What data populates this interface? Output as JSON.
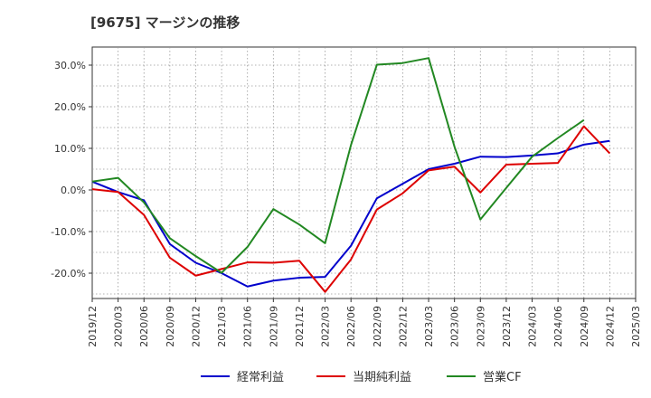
{
  "chart_data": {
    "type": "line",
    "title": "[9675]  マージンの推移",
    "xlabel": "",
    "ylabel": "",
    "ylim": [
      -26,
      34
    ],
    "yticks": [
      30,
      20,
      10,
      0,
      -10,
      -20
    ],
    "ytick_labels": [
      "30.0%",
      "20.0%",
      "10.0%",
      "0.0%",
      "-10.0%",
      "-20.0%"
    ],
    "grid": true,
    "legend_position": "bottom",
    "categories": [
      "2019/12",
      "2020/03",
      "2020/06",
      "2020/09",
      "2020/12",
      "2021/03",
      "2021/06",
      "2021/09",
      "2021/12",
      "2022/03",
      "2022/06",
      "2022/09",
      "2022/12",
      "2023/03",
      "2023/06",
      "2023/09",
      "2023/12",
      "2024/03",
      "2024/06",
      "2024/09",
      "2024/12",
      "2025/03"
    ],
    "series": [
      {
        "name": "経常利益",
        "color": "#0000cc",
        "values": [
          2.0,
          -0.5,
          -2.5,
          -13.0,
          -17.5,
          -20.0,
          -23.2,
          -21.8,
          -21.1,
          -20.9,
          -13.4,
          -2.0,
          1.5,
          5.0,
          6.3,
          8.0,
          7.9,
          8.3,
          8.8,
          10.9,
          11.8,
          null
        ]
      },
      {
        "name": "当期純利益",
        "color": "#dd0000",
        "values": [
          0.2,
          -0.5,
          -6.0,
          -16.3,
          -20.6,
          -19.0,
          -17.4,
          -17.5,
          -17.0,
          -24.5,
          -16.7,
          -4.7,
          -0.8,
          4.7,
          5.6,
          -0.6,
          6.1,
          6.3,
          6.5,
          15.3,
          8.8,
          null
        ]
      },
      {
        "name": "営業CF",
        "color": "#228822",
        "values": [
          2.0,
          2.9,
          -3.0,
          -11.6,
          -15.9,
          -19.9,
          -13.7,
          -4.6,
          -8.3,
          -12.8,
          10.8,
          30.1,
          30.5,
          31.7,
          10.4,
          -7.1,
          0.5,
          8.0,
          12.5,
          16.8,
          null,
          null
        ]
      }
    ]
  }
}
